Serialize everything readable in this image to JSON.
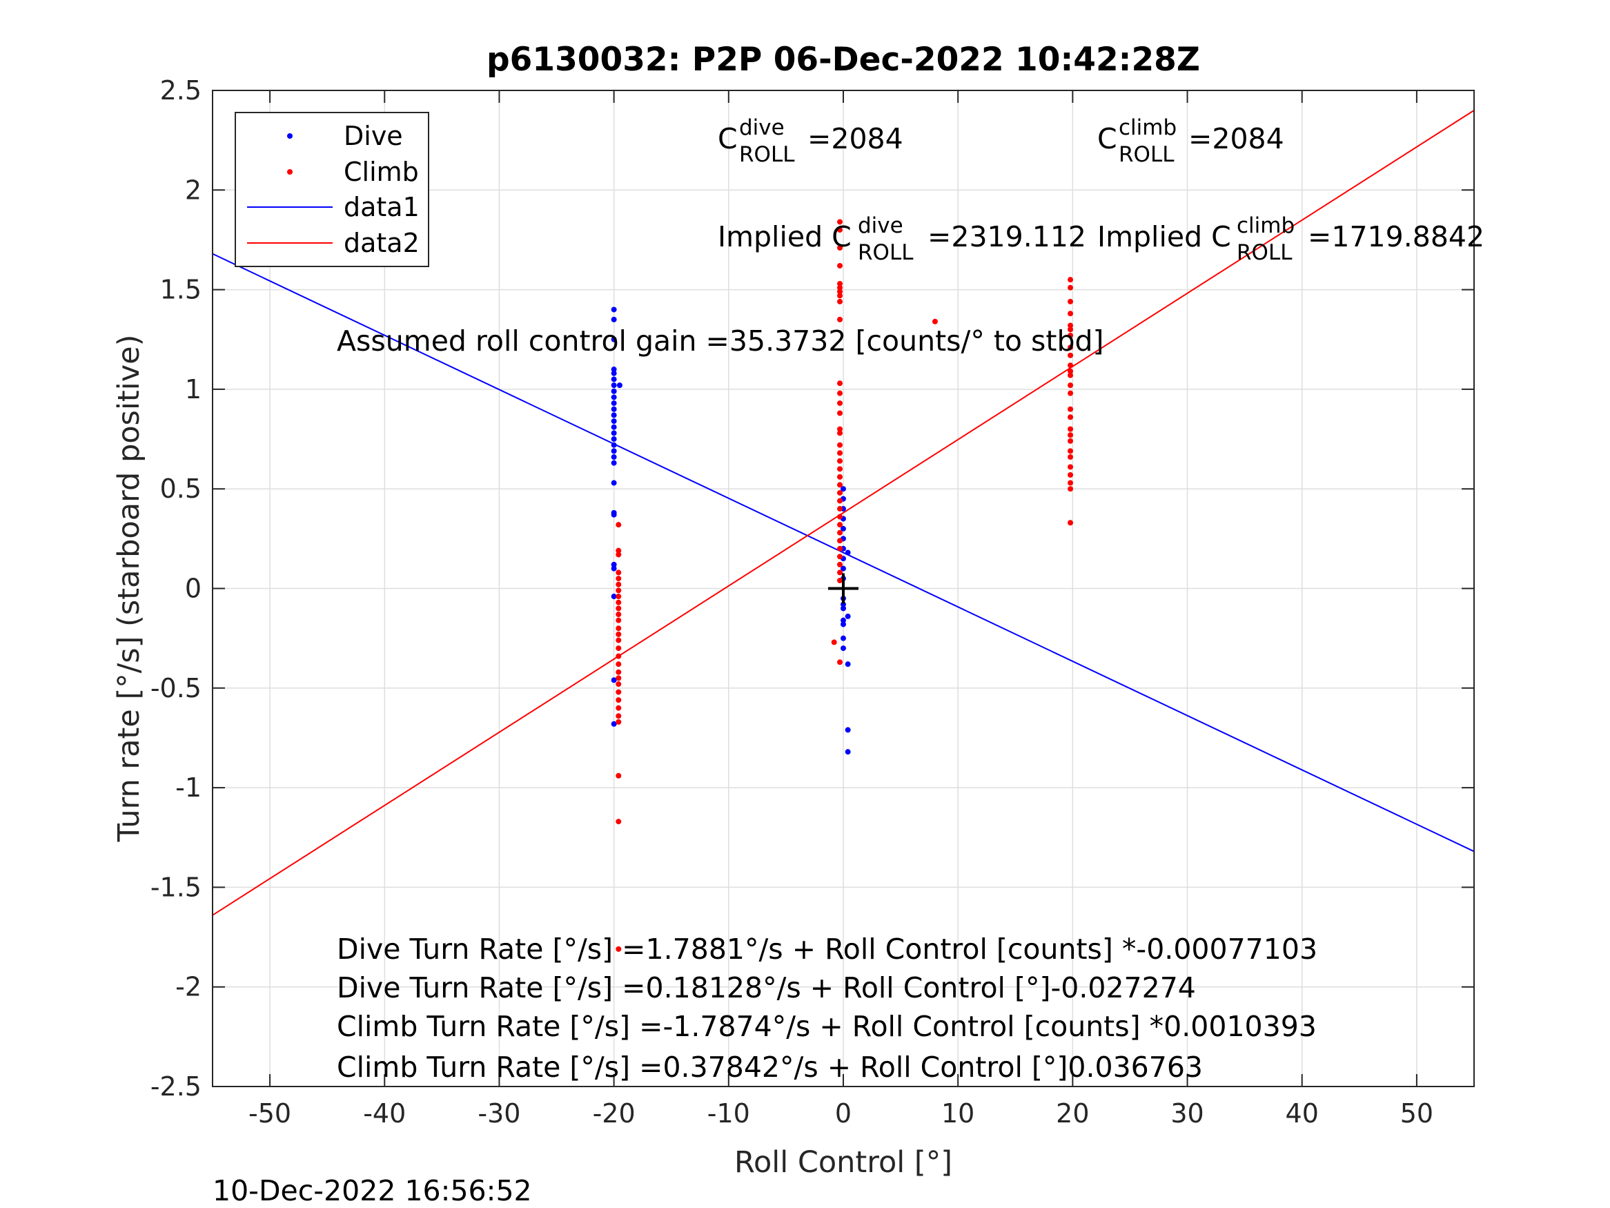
{
  "chart_data": {
    "type": "scatter",
    "title": "p6130032: P2P 06-Dec-2022 10:42:28Z",
    "xlabel": "Roll Control [°]",
    "ylabel": "Turn rate [°/s] (starboard positive)",
    "xlim": [
      -55,
      55
    ],
    "ylim": [
      -2.5,
      2.5
    ],
    "xticks": [
      -50,
      -40,
      -30,
      -20,
      -10,
      0,
      10,
      20,
      30,
      40,
      50
    ],
    "yticks": [
      -2.5,
      -2,
      -1.5,
      -1,
      -0.5,
      0,
      0.5,
      1,
      1.5,
      2,
      2.5
    ],
    "xtick_labels": [
      "-50",
      "-40",
      "-30",
      "-20",
      "-10",
      "0",
      "10",
      "20",
      "30",
      "40",
      "50"
    ],
    "ytick_labels": [
      "-2.5",
      "-2",
      "-1.5",
      "-1",
      "-0.5",
      "0",
      "0.5",
      "1",
      "1.5",
      "2",
      "2.5"
    ],
    "grid": true,
    "legend_position": "top-left",
    "footer": "10-Dec-2022 16:56:52",
    "colors": {
      "dive": "#0000ff",
      "climb": "#ff0000",
      "marker": "#000000"
    },
    "series": [
      {
        "name": "Dive",
        "kind": "points",
        "color": "#0000ff",
        "points": [
          [
            -20,
            1.4
          ],
          [
            -20,
            1.35
          ],
          [
            -20,
            1.25
          ],
          [
            -20,
            1.1
          ],
          [
            -20,
            1.08
          ],
          [
            -20,
            1.05
          ],
          [
            -20,
            1.02
          ],
          [
            -20,
            0.99
          ],
          [
            -20,
            0.96
          ],
          [
            -20,
            0.93
          ],
          [
            -20,
            0.9
          ],
          [
            -20,
            0.87
          ],
          [
            -20,
            0.84
          ],
          [
            -20,
            0.81
          ],
          [
            -20,
            0.78
          ],
          [
            -20,
            0.75
          ],
          [
            -20,
            0.72
          ],
          [
            -20,
            0.69
          ],
          [
            -20,
            0.66
          ],
          [
            -20,
            0.63
          ],
          [
            -20,
            0.53
          ],
          [
            -20,
            0.38
          ],
          [
            -20,
            0.37
          ],
          [
            -20,
            0.12
          ],
          [
            -20,
            0.1
          ],
          [
            -20,
            -0.04
          ],
          [
            -20,
            -0.46
          ],
          [
            -20,
            -0.68
          ],
          [
            -19.5,
            1.02
          ],
          [
            0,
            0.5
          ],
          [
            0,
            0.45
          ],
          [
            0,
            0.4
          ],
          [
            0,
            0.35
          ],
          [
            0,
            0.3
          ],
          [
            0,
            0.25
          ],
          [
            0,
            0.2
          ],
          [
            0,
            0.15
          ],
          [
            0,
            0.1
          ],
          [
            0,
            0.05
          ],
          [
            0,
            -0.05
          ],
          [
            0,
            -0.08
          ],
          [
            0,
            -0.1
          ],
          [
            0,
            -0.16
          ],
          [
            0,
            -0.18
          ],
          [
            0,
            -0.25
          ],
          [
            0,
            -0.3
          ],
          [
            0.4,
            0.18
          ],
          [
            0.4,
            -0.14
          ],
          [
            0.4,
            -0.38
          ],
          [
            0.4,
            -0.71
          ],
          [
            0.4,
            -0.82
          ]
        ]
      },
      {
        "name": "Climb",
        "kind": "points",
        "color": "#ff0000",
        "points": [
          [
            -19.6,
            0.32
          ],
          [
            -19.6,
            0.19
          ],
          [
            -19.6,
            0.17
          ],
          [
            -19.6,
            0.08
          ],
          [
            -19.6,
            0.05
          ],
          [
            -19.6,
            0.02
          ],
          [
            -19.6,
            -0.01
          ],
          [
            -19.6,
            -0.04
          ],
          [
            -19.6,
            -0.07
          ],
          [
            -19.6,
            -0.1
          ],
          [
            -19.6,
            -0.13
          ],
          [
            -19.6,
            -0.16
          ],
          [
            -19.6,
            -0.2
          ],
          [
            -19.6,
            -0.23
          ],
          [
            -19.6,
            -0.26
          ],
          [
            -19.6,
            -0.3
          ],
          [
            -19.6,
            -0.34
          ],
          [
            -19.6,
            -0.38
          ],
          [
            -19.6,
            -0.42
          ],
          [
            -19.6,
            -0.45
          ],
          [
            -19.6,
            -0.48
          ],
          [
            -19.6,
            -0.52
          ],
          [
            -19.6,
            -0.56
          ],
          [
            -19.6,
            -0.6
          ],
          [
            -19.6,
            -0.64
          ],
          [
            -19.6,
            -0.67
          ],
          [
            -19.6,
            -0.94
          ],
          [
            -19.6,
            -1.17
          ],
          [
            -19.6,
            -1.81
          ],
          [
            -0.3,
            1.84
          ],
          [
            -0.3,
            1.8
          ],
          [
            -0.3,
            1.71
          ],
          [
            -0.3,
            1.62
          ],
          [
            -0.3,
            1.53
          ],
          [
            -0.3,
            1.51
          ],
          [
            -0.3,
            1.49
          ],
          [
            -0.3,
            1.47
          ],
          [
            -0.3,
            1.44
          ],
          [
            -0.3,
            1.35
          ],
          [
            -0.3,
            1.03
          ],
          [
            -0.3,
            0.98
          ],
          [
            -0.3,
            0.93
          ],
          [
            -0.3,
            0.88
          ],
          [
            -0.3,
            0.8
          ],
          [
            -0.3,
            0.78
          ],
          [
            -0.3,
            0.72
          ],
          [
            -0.3,
            0.68
          ],
          [
            -0.3,
            0.64
          ],
          [
            -0.3,
            0.6
          ],
          [
            -0.3,
            0.56
          ],
          [
            -0.3,
            0.52
          ],
          [
            -0.3,
            0.48
          ],
          [
            -0.3,
            0.44
          ],
          [
            -0.3,
            0.4
          ],
          [
            -0.3,
            0.36
          ],
          [
            -0.3,
            0.32
          ],
          [
            -0.3,
            0.28
          ],
          [
            -0.3,
            0.24
          ],
          [
            -0.3,
            0.2
          ],
          [
            -0.3,
            0.16
          ],
          [
            -0.3,
            0.12
          ],
          [
            -0.3,
            0.08
          ],
          [
            -0.3,
            0.04
          ],
          [
            -0.3,
            -0.37
          ],
          [
            -0.8,
            -0.27
          ],
          [
            8,
            1.34
          ],
          [
            19.8,
            1.55
          ],
          [
            19.8,
            1.51
          ],
          [
            19.8,
            1.44
          ],
          [
            19.8,
            1.38
          ],
          [
            19.8,
            1.32
          ],
          [
            19.8,
            1.3
          ],
          [
            19.8,
            1.27
          ],
          [
            19.8,
            1.21
          ],
          [
            19.8,
            1.17
          ],
          [
            19.8,
            1.12
          ],
          [
            19.8,
            1.09
          ],
          [
            19.8,
            1.07
          ],
          [
            19.8,
            1.02
          ],
          [
            19.8,
            0.98
          ],
          [
            19.8,
            0.9
          ],
          [
            19.8,
            0.86
          ],
          [
            19.8,
            0.8
          ],
          [
            19.8,
            0.77
          ],
          [
            19.8,
            0.74
          ],
          [
            19.8,
            0.69
          ],
          [
            19.8,
            0.66
          ],
          [
            19.8,
            0.61
          ],
          [
            19.8,
            0.57
          ],
          [
            19.8,
            0.53
          ],
          [
            19.8,
            0.5
          ],
          [
            19.8,
            0.33
          ]
        ]
      },
      {
        "name": "data1",
        "kind": "line",
        "color": "#0000ff",
        "points": [
          [
            -55,
            1.68
          ],
          [
            55,
            -1.32
          ]
        ]
      },
      {
        "name": "data2",
        "kind": "line",
        "color": "#ff0000",
        "points": [
          [
            -55,
            -1.64
          ],
          [
            55,
            2.4
          ]
        ]
      }
    ],
    "marker": {
      "symbol": "+",
      "x": 0,
      "y": 0
    },
    "annotations": {
      "c_dive": {
        "base": "C",
        "sup": "dive",
        "sub": "ROLL",
        "value": "=2084"
      },
      "c_climb": {
        "base": "C",
        "sup": "climb",
        "sub": "ROLL",
        "value": "=2084"
      },
      "implied_dive": {
        "base": "Implied C",
        "sup": "dive",
        "sub": "ROLL",
        "value": "=2319.112"
      },
      "implied_climb": {
        "base": "Implied C",
        "sup": "climb",
        "sub": "ROLL",
        "value": "=1719.8842"
      },
      "gain": "Assumed roll control gain =35.3732 [counts/° to stbd]",
      "equations": [
        "Dive Turn Rate [°/s] =1.7881°/s + Roll Control [counts] *-0.00077103",
        "Dive Turn Rate [°/s] =0.18128°/s + Roll Control [°]-0.027274",
        "Climb Turn Rate [°/s] =-1.7874°/s + Roll Control [counts] *0.0010393",
        "Climb Turn Rate [°/s] =0.37842°/s + Roll Control [°]0.036763"
      ]
    }
  }
}
